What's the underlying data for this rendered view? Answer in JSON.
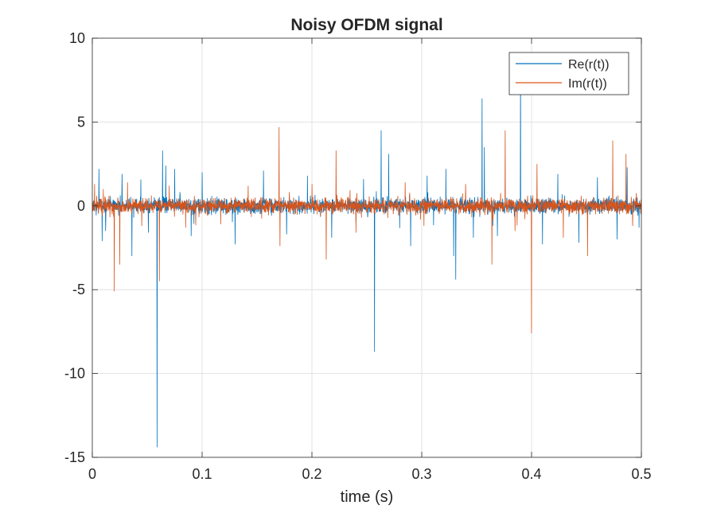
{
  "chart_data": {
    "type": "line",
    "title": "Noisy OFDM signal",
    "xlabel": "time (s)",
    "ylabel": "",
    "xlim": [
      0,
      0.5
    ],
    "ylim": [
      -15,
      10
    ],
    "xticks": [
      "0",
      "0.1",
      "0.2",
      "0.3",
      "0.4",
      "0.5"
    ],
    "yticks": [
      "10",
      "5",
      "0",
      "-5",
      "-10",
      "-15"
    ],
    "grid": true,
    "legend_position": "top-right",
    "noise_std": 0.22,
    "samples_per_series": 2400,
    "series": [
      {
        "name": "Re(r(t))",
        "color": "#0072BD",
        "noise_seed": 11,
        "spikes": [
          {
            "t": 0.006,
            "v": 2.2
          },
          {
            "t": 0.009,
            "v": -2.1
          },
          {
            "t": 0.012,
            "v": -1.5
          },
          {
            "t": 0.027,
            "v": 1.9
          },
          {
            "t": 0.036,
            "v": -3.0
          },
          {
            "t": 0.051,
            "v": -1.6
          },
          {
            "t": 0.059,
            "v": -14.4
          },
          {
            "t": 0.064,
            "v": 3.3
          },
          {
            "t": 0.067,
            "v": 2.4
          },
          {
            "t": 0.075,
            "v": 2.2
          },
          {
            "t": 0.09,
            "v": -1.8
          },
          {
            "t": 0.1,
            "v": 2.0
          },
          {
            "t": 0.13,
            "v": -2.3
          },
          {
            "t": 0.156,
            "v": 2.1
          },
          {
            "t": 0.177,
            "v": -1.7
          },
          {
            "t": 0.196,
            "v": 1.8
          },
          {
            "t": 0.218,
            "v": -1.9
          },
          {
            "t": 0.247,
            "v": 1.6
          },
          {
            "t": 0.257,
            "v": -8.7
          },
          {
            "t": 0.263,
            "v": 4.5
          },
          {
            "t": 0.27,
            "v": 3.1
          },
          {
            "t": 0.29,
            "v": -2.4
          },
          {
            "t": 0.305,
            "v": 1.8
          },
          {
            "t": 0.322,
            "v": 2.2
          },
          {
            "t": 0.329,
            "v": -3.0
          },
          {
            "t": 0.331,
            "v": -4.4
          },
          {
            "t": 0.347,
            "v": -1.9
          },
          {
            "t": 0.355,
            "v": 6.4
          },
          {
            "t": 0.357,
            "v": 3.5
          },
          {
            "t": 0.369,
            "v": -1.8
          },
          {
            "t": 0.39,
            "v": 9.0
          },
          {
            "t": 0.41,
            "v": -2.3
          },
          {
            "t": 0.424,
            "v": 1.9
          },
          {
            "t": 0.443,
            "v": -2.2
          },
          {
            "t": 0.46,
            "v": 1.7
          },
          {
            "t": 0.478,
            "v": -2.0
          },
          {
            "t": 0.487,
            "v": 2.3
          },
          {
            "t": 0.498,
            "v": -1.3
          }
        ]
      },
      {
        "name": "Im(r(t))",
        "color": "#D95319",
        "noise_seed": 29,
        "spikes": [
          {
            "t": 0.002,
            "v": 1.3
          },
          {
            "t": 0.01,
            "v": 1.0
          },
          {
            "t": 0.02,
            "v": -5.1
          },
          {
            "t": 0.025,
            "v": -3.5
          },
          {
            "t": 0.032,
            "v": 1.4
          },
          {
            "t": 0.045,
            "v": -1.2
          },
          {
            "t": 0.061,
            "v": -4.5
          },
          {
            "t": 0.07,
            "v": 1.2
          },
          {
            "t": 0.085,
            "v": -1.3
          },
          {
            "t": 0.117,
            "v": -1.1
          },
          {
            "t": 0.142,
            "v": 1.2
          },
          {
            "t": 0.17,
            "v": 4.7
          },
          {
            "t": 0.171,
            "v": -2.4
          },
          {
            "t": 0.2,
            "v": 1.3
          },
          {
            "t": 0.213,
            "v": -3.2
          },
          {
            "t": 0.222,
            "v": 3.3
          },
          {
            "t": 0.24,
            "v": -1.6
          },
          {
            "t": 0.285,
            "v": 1.4
          },
          {
            "t": 0.302,
            "v": -1.2
          },
          {
            "t": 0.34,
            "v": 1.3
          },
          {
            "t": 0.364,
            "v": -3.5
          },
          {
            "t": 0.376,
            "v": 4.5
          },
          {
            "t": 0.385,
            "v": -1.5
          },
          {
            "t": 0.4,
            "v": -7.6
          },
          {
            "t": 0.405,
            "v": 2.5
          },
          {
            "t": 0.429,
            "v": -1.9
          },
          {
            "t": 0.451,
            "v": -3.0
          },
          {
            "t": 0.474,
            "v": 3.9
          },
          {
            "t": 0.486,
            "v": 3.1
          },
          {
            "t": 0.492,
            "v": -1.2
          }
        ]
      }
    ]
  }
}
